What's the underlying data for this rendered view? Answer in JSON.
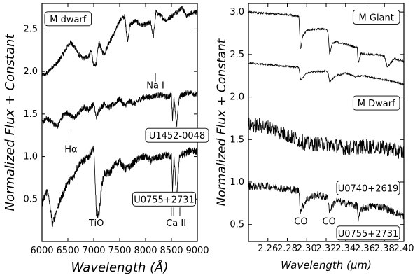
{
  "chart_data": [
    {
      "type": "line",
      "panel": "left",
      "xlabel": "Wavelength",
      "xlabel_unit": "(Å)",
      "ylabel": "Normalized Flux + Constant",
      "xlim": [
        6000,
        9000
      ],
      "ylim": [
        0.0,
        2.8
      ],
      "xticks": [
        "6000",
        "6500",
        "7000",
        "7500",
        "8000",
        "8500",
        "9000"
      ],
      "yticks": [
        "0.5",
        "1.0",
        "1.5",
        "2.0",
        "2.5"
      ],
      "xtick_values": [
        6000,
        6500,
        7000,
        7500,
        8000,
        8500,
        9000
      ],
      "ytick_values": [
        0.5,
        1.0,
        1.5,
        2.0,
        2.5
      ],
      "series": [
        {
          "name": "M dwarf",
          "noise": 0.03,
          "x": [
            6000,
            6100,
            6200,
            6300,
            6400,
            6500,
            6550,
            6600,
            6650,
            6700,
            6800,
            6900,
            6950,
            7000,
            7050,
            7100,
            7150,
            7200,
            7300,
            7400,
            7500,
            7600,
            7650,
            7700,
            7800,
            7900,
            8000,
            8100,
            8150,
            8200,
            8300,
            8400,
            8500,
            8600,
            8700,
            8800,
            8900,
            9000
          ],
          "y": [
            1.95,
            1.98,
            2.05,
            2.1,
            2.2,
            2.3,
            2.35,
            2.3,
            2.28,
            2.2,
            2.15,
            2.18,
            2.25,
            2.05,
            2.1,
            2.35,
            2.25,
            2.2,
            2.35,
            2.45,
            2.6,
            2.65,
            2.35,
            2.55,
            2.6,
            2.55,
            2.55,
            2.58,
            2.4,
            2.7,
            2.65,
            2.6,
            2.65,
            2.7,
            2.75,
            2.65,
            2.7,
            2.7
          ]
        },
        {
          "name": "U1452-0048",
          "noise": 0.035,
          "x": [
            6000,
            6100,
            6200,
            6300,
            6400,
            6500,
            6600,
            6700,
            6800,
            6900,
            7000,
            7050,
            7100,
            7200,
            7300,
            7400,
            7500,
            7600,
            7700,
            7800,
            7900,
            8000,
            8100,
            8200,
            8300,
            8400,
            8500,
            8520,
            8550,
            8600,
            8650,
            8700,
            8800,
            8900,
            9000
          ],
          "y": [
            1.4,
            1.45,
            1.4,
            1.35,
            1.48,
            1.52,
            1.45,
            1.5,
            1.58,
            1.55,
            1.62,
            1.45,
            1.55,
            1.62,
            1.58,
            1.62,
            1.68,
            1.6,
            1.65,
            1.62,
            1.68,
            1.7,
            1.7,
            1.72,
            1.72,
            1.7,
            1.72,
            1.45,
            1.7,
            1.35,
            1.7,
            1.72,
            1.75,
            1.75,
            1.72
          ]
        },
        {
          "name": "U0755+2731",
          "noise": 0.045,
          "x": [
            6000,
            6100,
            6150,
            6200,
            6300,
            6400,
            6500,
            6600,
            6700,
            6800,
            6900,
            7000,
            7050,
            7100,
            7150,
            7200,
            7300,
            7400,
            7500,
            7600,
            7700,
            7800,
            7900,
            8000,
            8100,
            8200,
            8300,
            8400,
            8500,
            8520,
            8550,
            8600,
            8650,
            8700,
            8800,
            8900,
            9000
          ],
          "y": [
            0.45,
            0.6,
            0.45,
            0.2,
            0.4,
            0.55,
            0.7,
            0.75,
            0.9,
            0.95,
            1.0,
            1.1,
            0.35,
            0.3,
            0.65,
            0.8,
            0.8,
            0.9,
            0.95,
            0.85,
            0.88,
            0.95,
            0.98,
            1.0,
            0.95,
            0.98,
            1.0,
            1.02,
            1.0,
            0.6,
            1.0,
            0.5,
            1.0,
            1.02,
            1.05,
            1.08,
            1.05
          ]
        }
      ],
      "labels": [
        {
          "name": "M dwarf",
          "pos": [
            6260,
            2.62
          ]
        },
        {
          "name": "U1452-0048",
          "pos": [
            8000,
            1.25
          ]
        },
        {
          "name": "U0755+2731",
          "pos": [
            7750,
            0.5
          ]
        }
      ],
      "annotations": [
        {
          "text": "Na I",
          "x": 8190,
          "y": 1.8,
          "line_y": [
            1.88,
            1.98
          ]
        },
        {
          "text": "Hα",
          "x": 6560,
          "y": 1.05,
          "line_y": [
            1.17,
            1.27
          ]
        },
        {
          "text": "TiO",
          "x": 7050,
          "y": 0.18,
          "line_y": [
            0.3,
            0.4
          ]
        },
        {
          "text": "Ca II",
          "x": 8590,
          "y": 0.18,
          "ticks": [
            8498,
            8542,
            8662
          ],
          "line_y": [
            0.3,
            0.4
          ]
        }
      ]
    },
    {
      "type": "line",
      "panel": "right",
      "xlabel": "Wavelength",
      "xlabel_unit": "(μm)",
      "ylabel": "Normalized Flux + Constant",
      "xlim": [
        2.24,
        2.4
      ],
      "ylim": [
        0.3,
        3.1
      ],
      "xticks": [
        "2.26",
        "2.28",
        "2.30",
        "2.32",
        "2.34",
        "2.36",
        "2.38",
        "2.40"
      ],
      "yticks": [
        "0.5",
        "1.0",
        "1.5",
        "2.0",
        "2.5",
        "3.0"
      ],
      "xtick_values": [
        2.26,
        2.28,
        2.3,
        2.32,
        2.34,
        2.36,
        2.38,
        2.4
      ],
      "ytick_values": [
        0.5,
        1.0,
        1.5,
        2.0,
        2.5,
        3.0
      ],
      "series": [
        {
          "name": "M Giant",
          "noise": 0.012,
          "x": [
            2.24,
            2.26,
            2.28,
            2.292,
            2.2935,
            2.296,
            2.3,
            2.31,
            2.32,
            2.322,
            2.3235,
            2.326,
            2.33,
            2.34,
            2.352,
            2.353,
            2.356,
            2.36,
            2.37,
            2.38,
            2.383,
            2.39,
            2.4
          ],
          "y": [
            3.0,
            2.98,
            2.97,
            2.95,
            2.55,
            2.72,
            2.78,
            2.8,
            2.8,
            2.76,
            2.5,
            2.62,
            2.65,
            2.62,
            2.58,
            2.4,
            2.52,
            2.5,
            2.5,
            2.48,
            2.35,
            2.45,
            2.42
          ]
        },
        {
          "name": "M Dwarf",
          "noise": 0.01,
          "x": [
            2.24,
            2.26,
            2.28,
            2.292,
            2.2935,
            2.3,
            2.31,
            2.32,
            2.322,
            2.3235,
            2.33,
            2.34,
            2.35,
            2.36,
            2.37,
            2.38,
            2.39,
            2.4
          ],
          "y": [
            2.4,
            2.38,
            2.36,
            2.35,
            2.2,
            2.28,
            2.3,
            2.3,
            2.28,
            2.18,
            2.25,
            2.28,
            2.24,
            2.25,
            2.22,
            2.2,
            2.18,
            2.15
          ]
        },
        {
          "name": "U0740+2619",
          "noise": 0.09,
          "x": [
            2.24,
            2.26,
            2.28,
            2.3,
            2.32,
            2.34,
            2.36,
            2.38,
            2.4
          ],
          "y": [
            1.68,
            1.65,
            1.55,
            1.45,
            1.45,
            1.4,
            1.42,
            1.4,
            1.35
          ]
        },
        {
          "name": "U0755+2731",
          "noise": 0.045,
          "x": [
            2.24,
            2.26,
            2.28,
            2.292,
            2.2935,
            2.296,
            2.3,
            2.31,
            2.32,
            2.322,
            2.3235,
            2.326,
            2.33,
            2.34,
            2.352,
            2.353,
            2.356,
            2.36,
            2.37,
            2.38,
            2.39,
            2.4
          ],
          "y": [
            0.95,
            0.95,
            0.92,
            0.9,
            0.65,
            0.72,
            0.8,
            0.85,
            0.82,
            0.8,
            0.65,
            0.72,
            0.78,
            0.75,
            0.72,
            0.55,
            0.68,
            0.7,
            0.72,
            0.7,
            0.65,
            0.6
          ]
        }
      ],
      "labels": [
        {
          "name": "M Giant",
          "pos": [
            2.385,
            2.94
          ]
        },
        {
          "name": "M Dwarf",
          "pos": [
            2.385,
            1.93
          ]
        },
        {
          "name": "U0740+2619",
          "pos": [
            2.385,
            0.93
          ]
        },
        {
          "name": "U0755+2731",
          "pos": [
            2.385,
            0.4
          ]
        }
      ],
      "annotations": [
        {
          "text": "CO",
          "x": 2.294,
          "y": 0.5
        },
        {
          "text": "CO",
          "x": 2.323,
          "y": 0.5
        }
      ]
    }
  ]
}
